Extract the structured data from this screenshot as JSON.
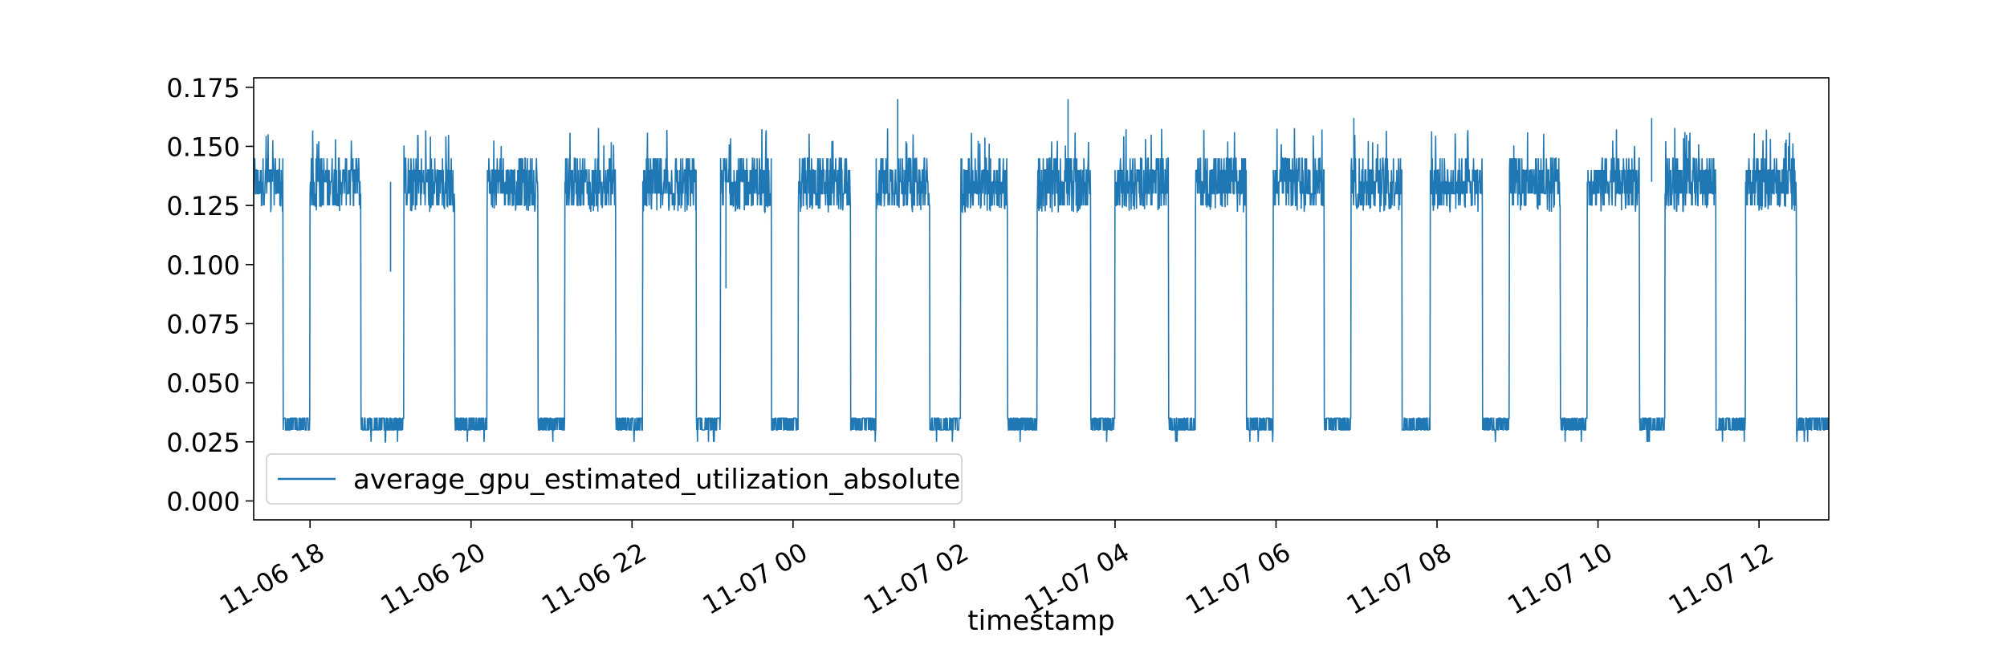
{
  "chart_data": {
    "type": "line",
    "title": "",
    "xlabel": "timestamp",
    "ylabel": "",
    "x_tick_labels": [
      "11-06 18",
      "11-06 20",
      "11-06 22",
      "11-07 00",
      "11-07 02",
      "11-07 04",
      "11-07 06",
      "11-07 08",
      "11-07 10",
      "11-07 12"
    ],
    "y_tick_labels": [
      "0.000",
      "0.025",
      "0.050",
      "0.075",
      "0.100",
      "0.125",
      "0.150",
      "0.175"
    ],
    "ylim": [
      -0.008,
      0.179
    ],
    "xlim": [
      "2023-11-06 17:18",
      "2023-11-07 12:52"
    ],
    "grid": false,
    "legend_position": "lower-left",
    "series": [
      {
        "name": "average_gpu_estimated_utilization_absolute",
        "color": "#1f77b4",
        "pattern": "alternating high/low plateaus of about one hour each",
        "high_level_band": [
          0.125,
          0.15
        ],
        "low_level_band": [
          0.03,
          0.035
        ],
        "spikes": [
          {
            "x": "2023-11-07 01:18",
            "y": 0.17
          },
          {
            "x": "2023-11-07 03:25",
            "y": 0.17
          },
          {
            "x": "2023-11-07 06:58",
            "y": 0.162
          },
          {
            "x": "2023-11-07 10:40",
            "y": 0.162
          },
          {
            "x": "2023-11-06 19:00",
            "y": 0.097
          },
          {
            "x": "2023-11-06 23:10",
            "y": 0.09
          }
        ],
        "segments": [
          {
            "start": "2023-11-06 17:18",
            "end": "2023-11-06 17:40",
            "level": "high"
          },
          {
            "start": "2023-11-06 17:40",
            "end": "2023-11-06 18:00",
            "level": "low"
          },
          {
            "start": "2023-11-06 18:00",
            "end": "2023-11-06 18:38",
            "level": "high"
          },
          {
            "start": "2023-11-06 18:38",
            "end": "2023-11-06 19:10",
            "level": "low"
          },
          {
            "start": "2023-11-06 19:10",
            "end": "2023-11-06 19:48",
            "level": "high"
          },
          {
            "start": "2023-11-06 19:48",
            "end": "2023-11-06 20:12",
            "level": "low"
          },
          {
            "start": "2023-11-06 20:12",
            "end": "2023-11-06 20:50",
            "level": "high"
          },
          {
            "start": "2023-11-06 20:50",
            "end": "2023-11-06 21:10",
            "level": "low"
          },
          {
            "start": "2023-11-06 21:10",
            "end": "2023-11-06 21:48",
            "level": "high"
          },
          {
            "start": "2023-11-06 21:48",
            "end": "2023-11-06 22:08",
            "level": "low"
          },
          {
            "start": "2023-11-06 22:08",
            "end": "2023-11-06 22:48",
            "level": "high"
          },
          {
            "start": "2023-11-06 22:48",
            "end": "2023-11-06 23:06",
            "level": "low"
          },
          {
            "start": "2023-11-06 23:06",
            "end": "2023-11-06 23:44",
            "level": "high"
          },
          {
            "start": "2023-11-06 23:44",
            "end": "2023-11-07 00:04",
            "level": "low"
          },
          {
            "start": "2023-11-07 00:04",
            "end": "2023-11-07 00:43",
            "level": "high"
          },
          {
            "start": "2023-11-07 00:43",
            "end": "2023-11-07 01:02",
            "level": "low"
          },
          {
            "start": "2023-11-07 01:02",
            "end": "2023-11-07 01:42",
            "level": "high"
          },
          {
            "start": "2023-11-07 01:42",
            "end": "2023-11-07 02:05",
            "level": "low"
          },
          {
            "start": "2023-11-07 02:05",
            "end": "2023-11-07 02:40",
            "level": "high"
          },
          {
            "start": "2023-11-07 02:40",
            "end": "2023-11-07 03:02",
            "level": "low"
          },
          {
            "start": "2023-11-07 03:02",
            "end": "2023-11-07 03:42",
            "level": "high"
          },
          {
            "start": "2023-11-07 03:42",
            "end": "2023-11-07 04:00",
            "level": "low"
          },
          {
            "start": "2023-11-07 04:00",
            "end": "2023-11-07 04:40",
            "level": "high"
          },
          {
            "start": "2023-11-07 04:40",
            "end": "2023-11-07 05:00",
            "level": "low"
          },
          {
            "start": "2023-11-07 05:00",
            "end": "2023-11-07 05:38",
            "level": "high"
          },
          {
            "start": "2023-11-07 05:38",
            "end": "2023-11-07 05:58",
            "level": "low"
          },
          {
            "start": "2023-11-07 05:58",
            "end": "2023-11-07 06:36",
            "level": "high"
          },
          {
            "start": "2023-11-07 06:36",
            "end": "2023-11-07 06:56",
            "level": "low"
          },
          {
            "start": "2023-11-07 06:56",
            "end": "2023-11-07 07:34",
            "level": "high"
          },
          {
            "start": "2023-11-07 07:34",
            "end": "2023-11-07 07:55",
            "level": "low"
          },
          {
            "start": "2023-11-07 07:55",
            "end": "2023-11-07 08:34",
            "level": "high"
          },
          {
            "start": "2023-11-07 08:34",
            "end": "2023-11-07 08:54",
            "level": "low"
          },
          {
            "start": "2023-11-07 08:54",
            "end": "2023-11-07 09:32",
            "level": "high"
          },
          {
            "start": "2023-11-07 09:32",
            "end": "2023-11-07 09:52",
            "level": "low"
          },
          {
            "start": "2023-11-07 09:52",
            "end": "2023-11-07 10:31",
            "level": "high"
          },
          {
            "start": "2023-11-07 10:31",
            "end": "2023-11-07 10:50",
            "level": "low"
          },
          {
            "start": "2023-11-07 10:50",
            "end": "2023-11-07 11:28",
            "level": "high"
          },
          {
            "start": "2023-11-07 11:28",
            "end": "2023-11-07 11:50",
            "level": "low"
          },
          {
            "start": "2023-11-07 11:50",
            "end": "2023-11-07 12:28",
            "level": "high"
          },
          {
            "start": "2023-11-07 12:28",
            "end": "2023-11-07 12:52",
            "level": "low"
          }
        ]
      }
    ]
  }
}
